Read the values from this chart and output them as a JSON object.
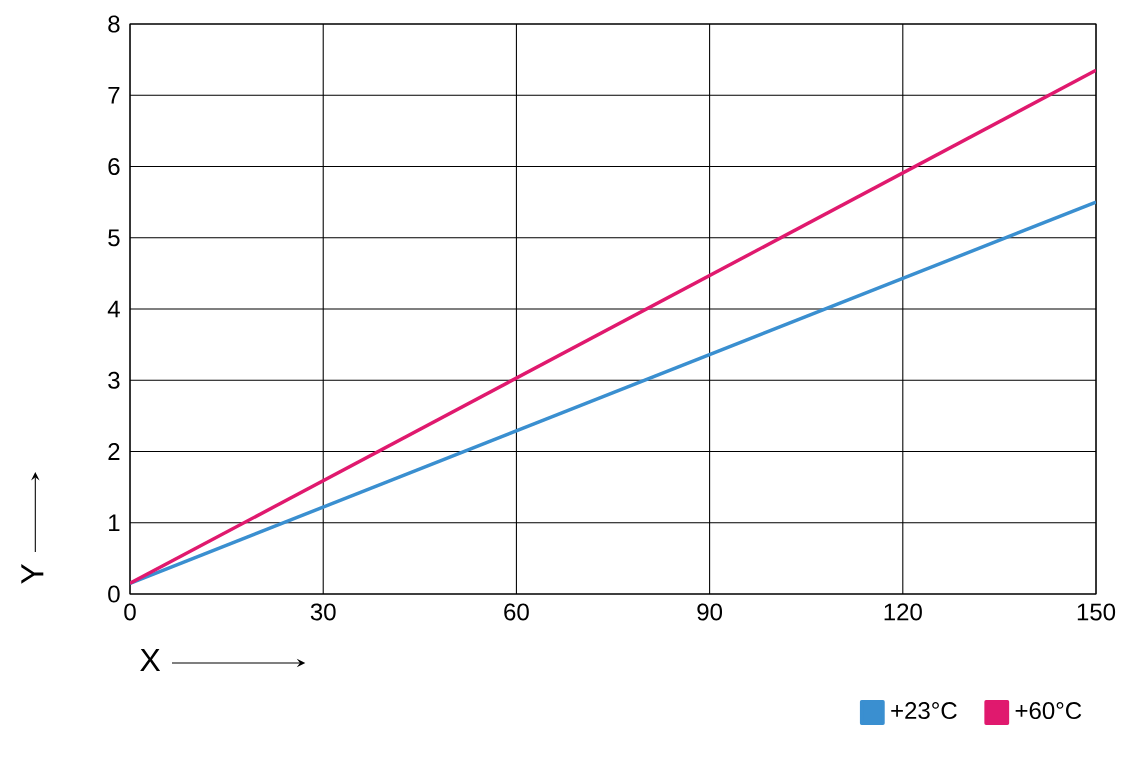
{
  "chart_data": {
    "type": "line",
    "xlabel": "X",
    "ylabel": "Y",
    "x": [
      0,
      150
    ],
    "series": [
      {
        "name": "+23°C",
        "color": "#3a8fd0",
        "values": [
          0.15,
          5.5
        ]
      },
      {
        "name": "+60°C",
        "color": "#e0196e",
        "values": [
          0.15,
          7.35
        ]
      }
    ],
    "xlim": [
      0,
      150
    ],
    "ylim": [
      0,
      8
    ],
    "xticks": [
      0,
      30,
      60,
      90,
      120,
      150
    ],
    "yticks": [
      0,
      1,
      2,
      3,
      4,
      5,
      6,
      7,
      8
    ],
    "grid": true,
    "legend": "bottom right"
  }
}
